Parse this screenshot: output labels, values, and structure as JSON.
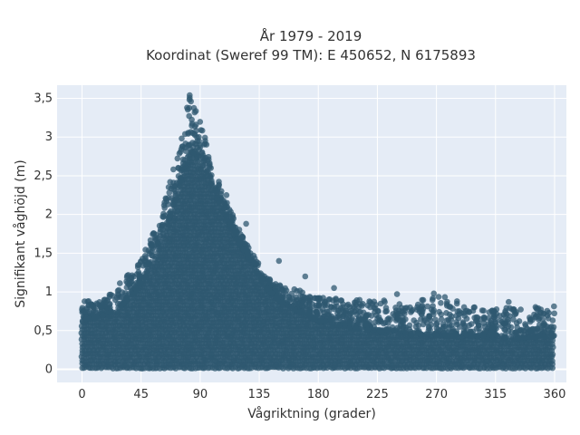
{
  "chart_data": {
    "type": "scatter",
    "title_line1": "År 1979 - 2019",
    "title_line2": "Koordinat (Sweref 99 TM): E 450652, N 6175893",
    "xlabel": "Vågriktning (grader)",
    "ylabel": "Signifikant våghöjd (m)",
    "xlim": [
      -19,
      369
    ],
    "ylim": [
      -0.17,
      3.67
    ],
    "x_ticks": [
      0,
      45,
      90,
      135,
      180,
      225,
      270,
      315,
      360
    ],
    "x_tick_labels": [
      "0",
      "45",
      "90",
      "135",
      "180",
      "225",
      "270",
      "315",
      "360"
    ],
    "y_ticks": [
      0,
      0.5,
      1,
      1.5,
      2,
      2.5,
      3,
      3.5
    ],
    "y_tick_labels": [
      "0",
      "0,5",
      "1",
      "1,5",
      "2",
      "2,5",
      "3",
      "3,5"
    ],
    "grid": true,
    "marker_color": "#2f5870",
    "background_color": "#e5ecf6",
    "envelope": {
      "direction": [
        0,
        10,
        20,
        30,
        40,
        50,
        60,
        70,
        78,
        82,
        85,
        90,
        95,
        100,
        110,
        120,
        130,
        140,
        150,
        160,
        180,
        200,
        225,
        250,
        270,
        300,
        330,
        360
      ],
      "dense_max": [
        0.62,
        0.66,
        0.72,
        0.82,
        0.98,
        1.25,
        1.62,
        2.1,
        2.55,
        2.75,
        2.8,
        2.7,
        2.55,
        2.3,
        1.95,
        1.6,
        1.35,
        1.05,
        0.88,
        0.78,
        0.62,
        0.55,
        0.48,
        0.45,
        0.44,
        0.42,
        0.4,
        0.42
      ],
      "outlier_max": [
        0.9,
        0.85,
        0.95,
        1.15,
        1.3,
        1.6,
        2.0,
        2.65,
        3.1,
        3.55,
        3.45,
        3.2,
        2.95,
        2.6,
        2.2,
        1.8,
        1.5,
        1.2,
        1.1,
        1.05,
        0.95,
        0.9,
        0.92,
        0.85,
        0.98,
        0.8,
        0.82,
        0.82
      ]
    },
    "notable_points": [
      {
        "x": 82,
        "y": 3.54
      },
      {
        "x": 83,
        "y": 3.46
      },
      {
        "x": 80,
        "y": 3.38
      },
      {
        "x": 70,
        "y": 2.32
      },
      {
        "x": 110,
        "y": 2.25
      },
      {
        "x": 125,
        "y": 1.88
      },
      {
        "x": 150,
        "y": 1.4
      },
      {
        "x": 170,
        "y": 1.2
      },
      {
        "x": 192,
        "y": 1.05
      },
      {
        "x": 240,
        "y": 0.97
      },
      {
        "x": 268,
        "y": 0.98
      },
      {
        "x": 325,
        "y": 0.87
      },
      {
        "x": 5,
        "y": 0.88
      }
    ],
    "point_count": 1500
  }
}
